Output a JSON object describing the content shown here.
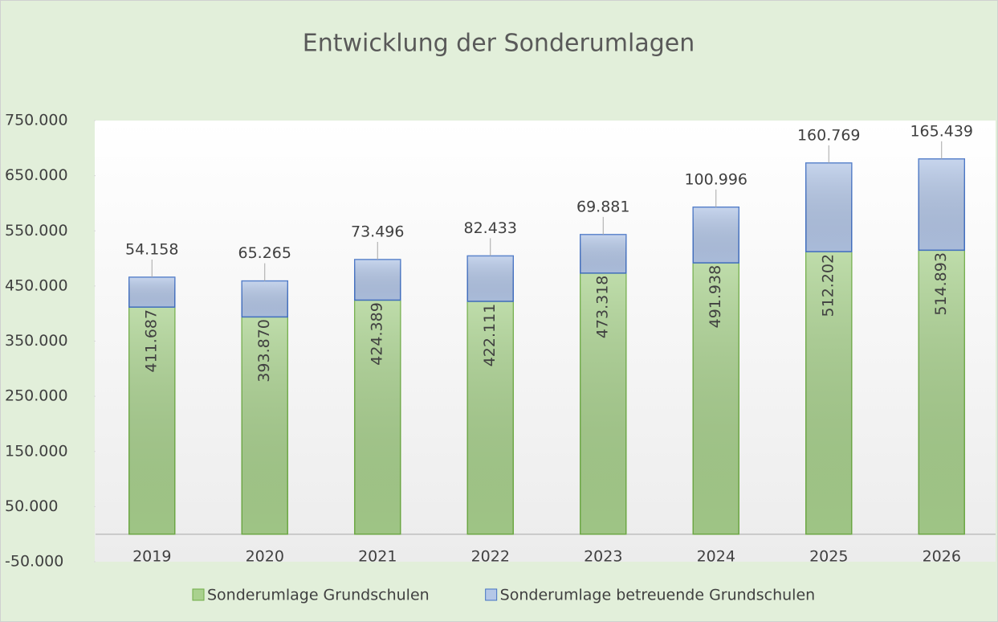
{
  "chart_data": {
    "type": "stacked_bar",
    "title": "Entwicklung der Sonderumlagen",
    "categories": [
      "2019",
      "2020",
      "2021",
      "2022",
      "2023",
      "2024",
      "2025",
      "2026"
    ],
    "series": [
      {
        "name": "Sonderumlage Grundschulen",
        "color": "#a9d18e",
        "values": [
          411687,
          393870,
          424389,
          422111,
          473318,
          491938,
          512202,
          514893
        ],
        "value_labels": [
          "411.687",
          "393.870",
          "424.389",
          "422.111",
          "473.318",
          "491.938",
          "512.202",
          "514.893"
        ]
      },
      {
        "name": "Sonderumlage betreuende Grundschulen",
        "color": "#b4c7e7",
        "values": [
          54158,
          65265,
          73496,
          82433,
          69881,
          100996,
          160769,
          165439
        ],
        "value_labels": [
          "54.158",
          "65.265",
          "73.496",
          "82.433",
          "69.881",
          "100.996",
          "160.769",
          "165.439"
        ]
      }
    ],
    "ylim": [
      -50000,
      750000
    ],
    "yticks": [
      {
        "value": -50000,
        "label": "-50.000"
      },
      {
        "value": 50000,
        "label": "50.000"
      },
      {
        "value": 150000,
        "label": "150.000"
      },
      {
        "value": 250000,
        "label": "250.000"
      },
      {
        "value": 350000,
        "label": "350.000"
      },
      {
        "value": 450000,
        "label": "450.000"
      },
      {
        "value": 550000,
        "label": "550.000"
      },
      {
        "value": 650000,
        "label": "650.000"
      },
      {
        "value": 750000,
        "label": "750.000"
      }
    ],
    "legend": "bottom"
  }
}
